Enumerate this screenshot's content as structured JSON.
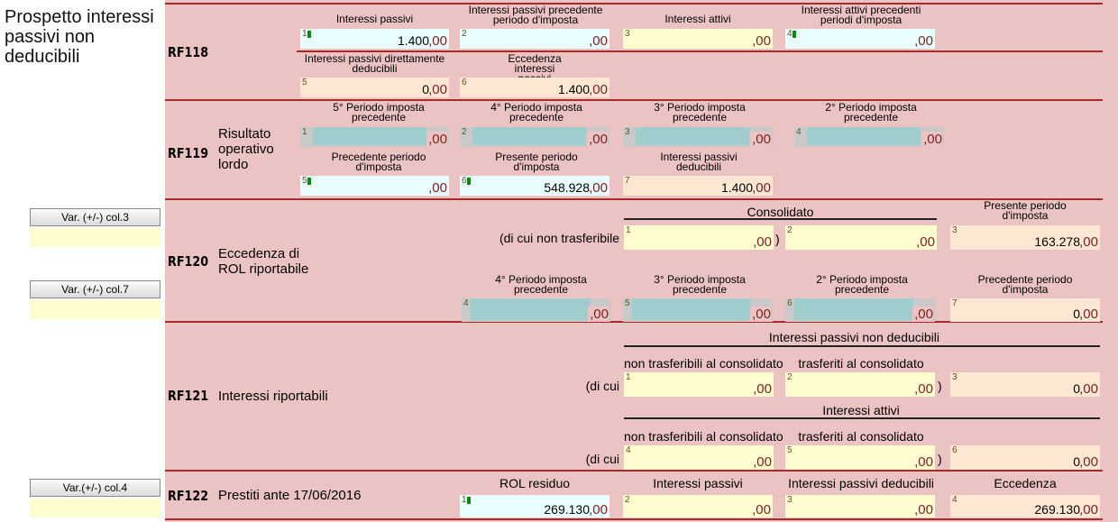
{
  "title": "Prospetto interessi passivi non deducibili",
  "buttons": {
    "var_col3": "Var. (+/-) col.3",
    "var_col7": "Var. (+/-) col.7",
    "var_col4": "Var.(+/-) col.4"
  },
  "rf118": {
    "code": "RF118",
    "labels": {
      "c1": "Interessi passivi",
      "c2": "Interessi passivi precedente periodo d'imposta",
      "c3": "Interessi attivi",
      "c4": "Interessi attivi precedenti periodi d'imposta",
      "c5": "Interessi passivi direttamente deducibili",
      "c6": "Eccedenza interessi passivi"
    },
    "values": {
      "c1": "1.400",
      "c2": "",
      "c3": "",
      "c4": "",
      "c5": "0",
      "c6": "1.400"
    }
  },
  "rf119": {
    "code": "RF119",
    "desc": "Risultato operativo lordo",
    "labels": {
      "c1": "5° Periodo imposta precedente",
      "c2": "4° Periodo imposta precedente",
      "c3": "3° Periodo imposta precedente",
      "c4": "2° Periodo imposta precedente",
      "c5": "Precedente periodo d'imposta",
      "c6": "Presente periodo d'imposta",
      "c7": "Interessi passivi deducibili"
    },
    "values": {
      "c1": "",
      "c2": "",
      "c3": "",
      "c4": "",
      "c5": "",
      "c6": "548.928",
      "c7": "1.400"
    }
  },
  "rf120": {
    "code": "RF120",
    "desc": "Eccedenza di ROL riportabile",
    "consolidato": "Consolidato",
    "non_trasf": "(di cui non trasferibile",
    "labels": {
      "c3": "Presente periodo d'imposta",
      "c4": "4° Periodo imposta precedente",
      "c5": "3° Periodo imposta precedente",
      "c6": "2° Periodo imposta precedente",
      "c7": "Precedente periodo d'imposta"
    },
    "values": {
      "c1": "",
      "c2": "",
      "c3": "163.278",
      "c4": "",
      "c5": "",
      "c6": "",
      "c7": "0"
    }
  },
  "rf121": {
    "code": "RF121",
    "desc": "Interessi riportabili",
    "group1": "Interessi passivi non deducibili",
    "group2": "Interessi attivi",
    "di_cui": "(di cui",
    "non_trasf_cons": "non trasferibili al consolidato",
    "trasf_cons": "trasferiti al consolidato",
    "values": {
      "c1": "",
      "c2": "",
      "c3": "0",
      "c4": "",
      "c5": "",
      "c6": "0"
    }
  },
  "rf122": {
    "code": "RF122",
    "desc": "Prestiti ante 17/06/2016",
    "labels": {
      "c1": "ROL residuo",
      "c2": "Interessi passivi",
      "c3": "Interessi passivi deducibili",
      "c4": "Eccedenza"
    },
    "values": {
      "c1": "269.130",
      "c2": "",
      "c3": "",
      "c4": "269.130"
    }
  },
  "symbols": {
    "decimals": ",00",
    "close_paren": ")"
  },
  "colors": {
    "background": "#ecc3c3",
    "separator": "#a82b2b",
    "decimals": "#7a2323"
  }
}
